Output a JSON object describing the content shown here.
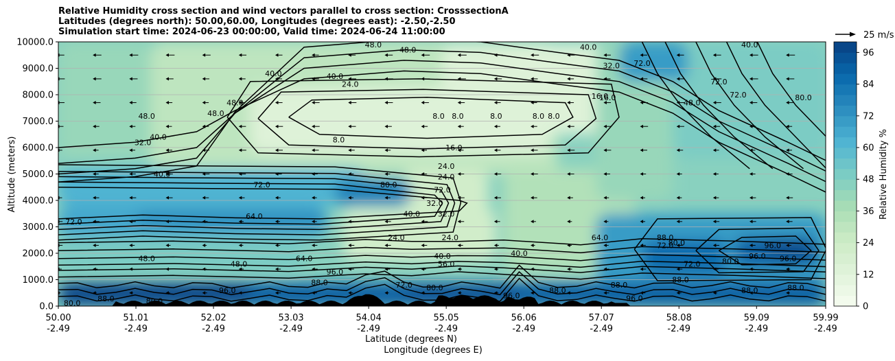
{
  "chart_data": {
    "type": "heatmap",
    "title_lines": [
      "Relative Humidity cross section and wind vectors parallel to cross section: CrosssectionA",
      "Latitudes (degrees north): 50.00,60.00, Longitudes (degrees east): -2.50,-2.50",
      "Simulation start time: 2024-06-23 00:00:00, Valid time: 2024-06-24 11:00:00"
    ],
    "xlabel_lat": "Latitude (degrees N)",
    "xlabel_lon": "Longitude (degrees E)",
    "ylabel": "Altitude (meters)",
    "xlim": [
      50.0,
      59.99
    ],
    "ylim": [
      0,
      10000
    ],
    "grid": "horizontal",
    "x_ticks": [
      {
        "lat": "50.00",
        "lon": "-2.49",
        "v": 50.0
      },
      {
        "lat": "51.01",
        "lon": "-2.49",
        "v": 51.01
      },
      {
        "lat": "52.02",
        "lon": "-2.49",
        "v": 52.02
      },
      {
        "lat": "53.03",
        "lon": "-2.49",
        "v": 53.03
      },
      {
        "lat": "54.04",
        "lon": "-2.49",
        "v": 54.04
      },
      {
        "lat": "55.05",
        "lon": "-2.49",
        "v": 55.05
      },
      {
        "lat": "56.06",
        "lon": "-2.49",
        "v": 56.06
      },
      {
        "lat": "57.07",
        "lon": "-2.49",
        "v": 57.07
      },
      {
        "lat": "58.08",
        "lon": "-2.49",
        "v": 58.08
      },
      {
        "lat": "59.09",
        "lon": "-2.49",
        "v": 59.09
      },
      {
        "lat": "59.99",
        "lon": "-2.49",
        "v": 59.99
      }
    ],
    "y_ticks": [
      "0.0",
      "1000.0",
      "2000.0",
      "3000.0",
      "4000.0",
      "5000.0",
      "6000.0",
      "7000.0",
      "8000.0",
      "9000.0",
      "10000.0"
    ],
    "colorbar": {
      "label": "Relative Humidity %",
      "ticks": [
        "0",
        "12",
        "24",
        "36",
        "48",
        "60",
        "72",
        "84",
        "96"
      ],
      "range": [
        0,
        100
      ],
      "colormap": "GnBu",
      "colors": [
        "#f7fcf0",
        "#e0f3db",
        "#ccebc5",
        "#a8ddb5",
        "#7bccc4",
        "#4eb3d3",
        "#2b8cbe",
        "#0868ac",
        "#084081"
      ]
    },
    "quiver_key": "25 m/s",
    "contour_labels": [
      {
        "t": "80.0",
        "x": 50.18,
        "y": 120
      },
      {
        "t": "88.0",
        "x": 50.62,
        "y": 280
      },
      {
        "t": "72.0",
        "x": 50.2,
        "y": 3200
      },
      {
        "t": "48.0",
        "x": 51.15,
        "y": 1800
      },
      {
        "t": "32.0",
        "x": 51.1,
        "y": 6200
      },
      {
        "t": "40.0",
        "x": 51.3,
        "y": 6400
      },
      {
        "t": "48.0",
        "x": 51.15,
        "y": 7200
      },
      {
        "t": "40.0",
        "x": 51.35,
        "y": 5000
      },
      {
        "t": "64.0",
        "x": 52.55,
        "y": 3400
      },
      {
        "t": "72.0",
        "x": 52.65,
        "y": 4600
      },
      {
        "t": "48.0",
        "x": 52.35,
        "y": 1600
      },
      {
        "t": "48.0",
        "x": 52.05,
        "y": 7300
      },
      {
        "t": "48.0",
        "x": 52.3,
        "y": 7700
      },
      {
        "t": "40.0",
        "x": 52.8,
        "y": 8800
      },
      {
        "t": "40.0",
        "x": 53.6,
        "y": 8700
      },
      {
        "t": "24.0",
        "x": 53.8,
        "y": 8400
      },
      {
        "t": "8.0",
        "x": 53.65,
        "y": 6300
      },
      {
        "t": "64.0",
        "x": 53.2,
        "y": 1800
      },
      {
        "t": "48.0",
        "x": 54.1,
        "y": 9900
      },
      {
        "t": "48.0",
        "x": 54.55,
        "y": 9700
      },
      {
        "t": "8.0",
        "x": 54.95,
        "y": 7200
      },
      {
        "t": "8.0",
        "x": 55.2,
        "y": 7200
      },
      {
        "t": "8.0",
        "x": 55.7,
        "y": 7200
      },
      {
        "t": "8.0",
        "x": 56.25,
        "y": 7200
      },
      {
        "t": "8.0",
        "x": 56.45,
        "y": 7200
      },
      {
        "t": "16.0",
        "x": 55.15,
        "y": 6000
      },
      {
        "t": "16.0",
        "x": 57.05,
        "y": 7950
      },
      {
        "t": "16.0",
        "x": 57.15,
        "y": 7900
      },
      {
        "t": "24.0",
        "x": 55.05,
        "y": 5300
      },
      {
        "t": "24.0",
        "x": 55.05,
        "y": 4900
      },
      {
        "t": "72.0",
        "x": 55.0,
        "y": 4400
      },
      {
        "t": "80.0",
        "x": 54.3,
        "y": 4600
      },
      {
        "t": "40.0",
        "x": 54.6,
        "y": 3500
      },
      {
        "t": "32.0",
        "x": 55.05,
        "y": 3500
      },
      {
        "t": "32.0",
        "x": 54.9,
        "y": 3900
      },
      {
        "t": "24.0",
        "x": 54.4,
        "y": 2600
      },
      {
        "t": "24.0",
        "x": 55.1,
        "y": 2600
      },
      {
        "t": "40.0",
        "x": 55.0,
        "y": 1900
      },
      {
        "t": "56.0",
        "x": 55.05,
        "y": 1600
      },
      {
        "t": "40.0",
        "x": 56.0,
        "y": 2000
      },
      {
        "t": "32.0",
        "x": 57.2,
        "y": 9100
      },
      {
        "t": "40.0",
        "x": 56.9,
        "y": 9800
      },
      {
        "t": "72.0",
        "x": 57.6,
        "y": 9200
      },
      {
        "t": "48.0",
        "x": 58.25,
        "y": 7700
      },
      {
        "t": "72.0",
        "x": 58.6,
        "y": 8500
      },
      {
        "t": "72.0",
        "x": 58.85,
        "y": 8000
      },
      {
        "t": "80.0",
        "x": 59.7,
        "y": 7900
      },
      {
        "t": "40.0",
        "x": 59.0,
        "y": 9900
      },
      {
        "t": "72.0",
        "x": 57.9,
        "y": 2300
      },
      {
        "t": "80.0",
        "x": 58.05,
        "y": 2400
      },
      {
        "t": "72.0",
        "x": 58.25,
        "y": 1600
      },
      {
        "t": "80.0",
        "x": 58.75,
        "y": 1700
      },
      {
        "t": "88.0",
        "x": 58.1,
        "y": 1000
      },
      {
        "t": "96.0",
        "x": 59.3,
        "y": 2300
      },
      {
        "t": "96.0",
        "x": 59.5,
        "y": 1800
      },
      {
        "t": "96.0",
        "x": 59.1,
        "y": 1900
      },
      {
        "t": "88.0",
        "x": 59.0,
        "y": 600
      },
      {
        "t": "88.0",
        "x": 59.6,
        "y": 700
      },
      {
        "t": "72.0",
        "x": 54.5,
        "y": 800
      },
      {
        "t": "96.0",
        "x": 53.6,
        "y": 1300
      },
      {
        "t": "88.0",
        "x": 53.4,
        "y": 900
      },
      {
        "t": "80.0",
        "x": 51.25,
        "y": 200
      },
      {
        "t": "96.0",
        "x": 52.2,
        "y": 600
      },
      {
        "t": "88.0",
        "x": 56.5,
        "y": 600
      },
      {
        "t": "88.0",
        "x": 57.3,
        "y": 800
      },
      {
        "t": "96.0",
        "x": 57.5,
        "y": 300
      },
      {
        "t": "96.0",
        "x": 55.9,
        "y": 400
      },
      {
        "t": "80.0",
        "x": 54.9,
        "y": 700
      },
      {
        "t": "64.0",
        "x": 57.05,
        "y": 2600
      },
      {
        "t": "88.0",
        "x": 57.9,
        "y": 2600
      }
    ]
  }
}
